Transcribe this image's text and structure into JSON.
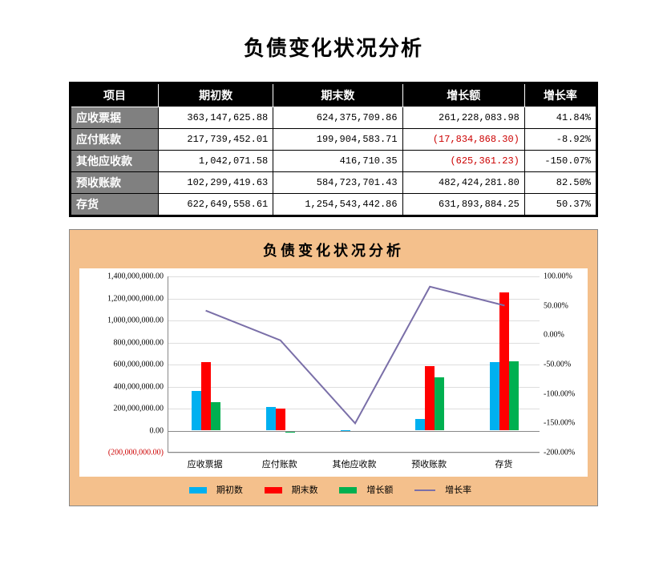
{
  "title": "负债变化状况分析",
  "table": {
    "headers": [
      "项目",
      "期初数",
      "期末数",
      "增长额",
      "增长率"
    ],
    "rows": [
      {
        "label": "应收票据",
        "begin": "363,147,625.88",
        "end": "624,375,709.86",
        "delta": "261,228,083.98",
        "rate": "41.84%",
        "neg": false
      },
      {
        "label": "应付账款",
        "begin": "217,739,452.01",
        "end": "199,904,583.71",
        "delta": "(17,834,868.30)",
        "rate": "-8.92%",
        "neg": true
      },
      {
        "label": "其他应收款",
        "begin": "1,042,071.58",
        "end": "416,710.35",
        "delta": "(625,361.23)",
        "rate": "-150.07%",
        "neg": true
      },
      {
        "label": "预收账款",
        "begin": "102,299,419.63",
        "end": "584,723,701.43",
        "delta": "482,424,281.80",
        "rate": "82.50%",
        "neg": false
      },
      {
        "label": "存货",
        "begin": "622,649,558.61",
        "end": "1,254,543,442.86",
        "delta": "631,893,884.25",
        "rate": "50.37%",
        "neg": false
      }
    ]
  },
  "chart": {
    "title": "负债变化状况分析",
    "categories": [
      "应收票据",
      "应付账款",
      "其他应收款",
      "预收账款",
      "存货"
    ],
    "series": {
      "begin": {
        "label": "期初数",
        "color": "#00b0f0",
        "values": [
          363147625.88,
          217739452.01,
          1042071.58,
          102299419.63,
          622649558.61
        ]
      },
      "end": {
        "label": "期末数",
        "color": "#ff0000",
        "values": [
          624375709.86,
          199904583.71,
          416710.35,
          584723701.43,
          1254543442.86
        ]
      },
      "delta": {
        "label": "增长额",
        "color": "#00b050",
        "values": [
          261228083.98,
          -17834868.3,
          -625361.23,
          482424281.8,
          631893884.25
        ]
      },
      "rate": {
        "label": "增长率",
        "color": "#7a6fa8",
        "values": [
          41.84,
          -8.92,
          -150.07,
          82.5,
          50.37
        ]
      }
    },
    "y_left": {
      "min": -200000000,
      "max": 1400000000,
      "step": 200000000,
      "labels": [
        "(200,000,000.00)",
        "0.00",
        "200,000,000.00",
        "400,000,000.00",
        "600,000,000.00",
        "800,000,000.00",
        "1,000,000,000.00",
        "1,200,000,000.00",
        "1,400,000,000.00"
      ]
    },
    "y_right": {
      "min": -200,
      "max": 100,
      "step": 50,
      "labels": [
        "-200.00%",
        "-150.00%",
        "-100.00%",
        "-50.00%",
        "0.00%",
        "50.00%",
        "100.00%"
      ]
    },
    "background": "#f4c08c",
    "plot_bg": "#ffffff",
    "grid_color": "#dddddd"
  },
  "legend_labels": {
    "begin": "期初数",
    "end": "期末数",
    "delta": "增长额",
    "rate": "增长率"
  }
}
